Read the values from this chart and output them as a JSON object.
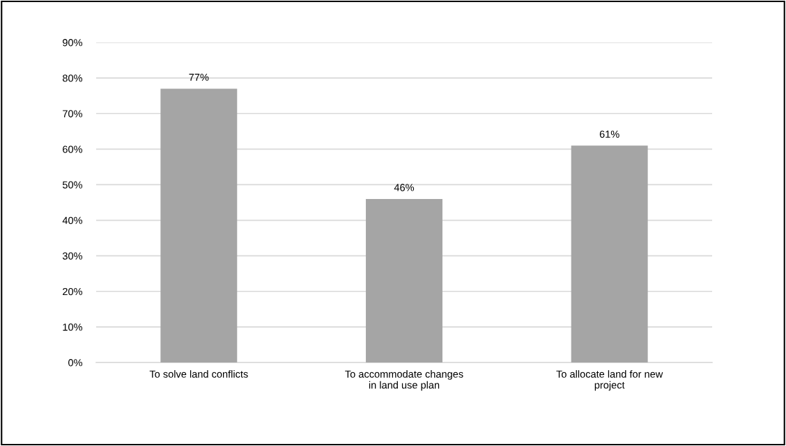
{
  "chart_data": {
    "type": "bar",
    "categories": [
      "To solve land conflicts",
      "To accommodate changes\nin land use plan",
      "To allocate land for new\nproject"
    ],
    "values": [
      77,
      46,
      61
    ],
    "color": "#a5a5a5",
    "value_labels": [
      "77%",
      "46%",
      "61%"
    ],
    "ylim": [
      0,
      90
    ],
    "yticks": [
      {
        "value": 0,
        "label": "0%"
      },
      {
        "value": 10,
        "label": "10%"
      },
      {
        "value": 20,
        "label": "20%"
      },
      {
        "value": 30,
        "label": "30%"
      },
      {
        "value": 40,
        "label": "40%"
      },
      {
        "value": 50,
        "label": "50%"
      },
      {
        "value": 60,
        "label": "60%"
      },
      {
        "value": 70,
        "label": "70%"
      },
      {
        "value": 80,
        "label": "80%"
      },
      {
        "value": 90,
        "label": "90%"
      }
    ],
    "grid": "y"
  }
}
